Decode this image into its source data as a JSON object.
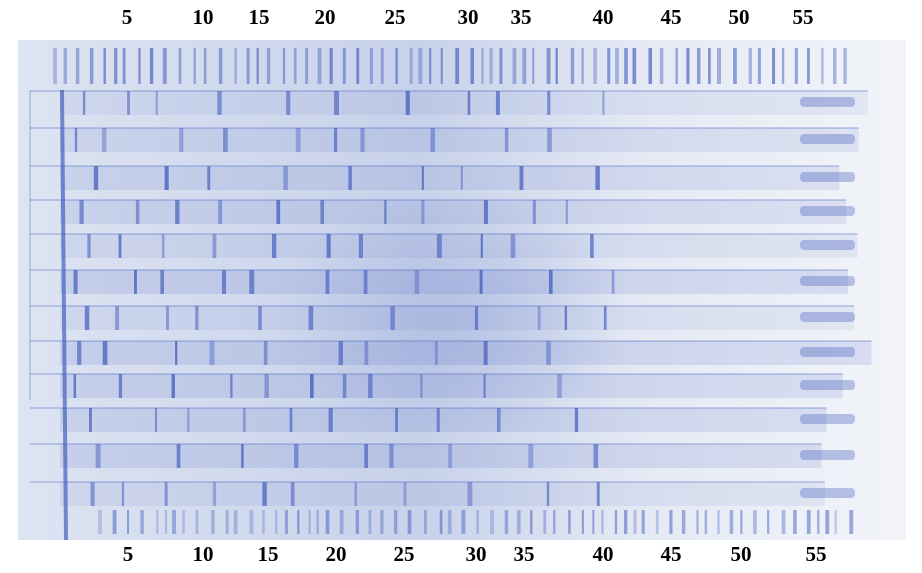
{
  "top_labels": [
    "5",
    "10",
    "15",
    "20",
    "25",
    "30",
    "35",
    "40",
    "45",
    "50",
    "55"
  ],
  "bottom_labels": [
    "5",
    "10",
    "15",
    "20",
    "25",
    "30",
    "35",
    "40",
    "45",
    "50",
    "55"
  ]
}
